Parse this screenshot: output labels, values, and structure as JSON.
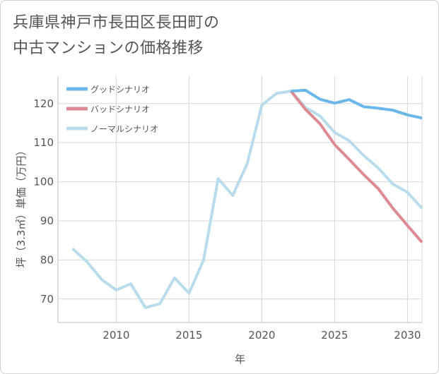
{
  "title_lines": [
    "兵庫県神戸市長田区長田町の",
    "中古マンションの価格推移"
  ],
  "chart_data": {
    "type": "line",
    "title": "兵庫県神戸市長田区長田町の中古マンションの価格推移",
    "xlabel": "年",
    "ylabel": "坪（3.3㎡）単価（万円）",
    "xlim": [
      2006,
      2031
    ],
    "ylim": [
      64,
      127
    ],
    "xticks": [
      2010,
      2015,
      2020,
      2025,
      2030
    ],
    "yticks": [
      70,
      80,
      90,
      100,
      110,
      120
    ],
    "legend_position": "top-left",
    "series": [
      {
        "name": "グッドシナリオ",
        "color": "#6ab8ea",
        "x": [
          2022,
          2023,
          2024,
          2025,
          2026,
          2027,
          2028,
          2029,
          2030,
          2031
        ],
        "values": [
          123.2,
          123.4,
          121.1,
          120.1,
          121.0,
          119.2,
          118.8,
          118.3,
          117.1,
          116.3
        ]
      },
      {
        "name": "バッドシナリオ",
        "color": "#dd8a92",
        "x": [
          2022,
          2023,
          2024,
          2025,
          2026,
          2027,
          2028,
          2029,
          2030,
          2031
        ],
        "values": [
          123.2,
          118.5,
          114.8,
          109.5,
          105.7,
          101.8,
          98.2,
          93.2,
          88.8,
          84.5
        ]
      },
      {
        "name": "ノーマルシナリオ",
        "color": "#b9dcec",
        "x": [
          2007,
          2008,
          2009,
          2010,
          2011,
          2012,
          2013,
          2014,
          2015,
          2016,
          2017,
          2018,
          2019,
          2020,
          2021,
          2022,
          2023,
          2024,
          2025,
          2026,
          2027,
          2028,
          2029,
          2030,
          2031
        ],
        "values": [
          82.9,
          79.5,
          75.0,
          72.3,
          73.9,
          67.8,
          68.8,
          75.4,
          71.5,
          80.0,
          100.8,
          96.5,
          104.7,
          119.6,
          122.6,
          123.2,
          119.0,
          116.8,
          112.6,
          110.5,
          106.7,
          103.5,
          99.4,
          97.3,
          93.2
        ]
      }
    ]
  }
}
